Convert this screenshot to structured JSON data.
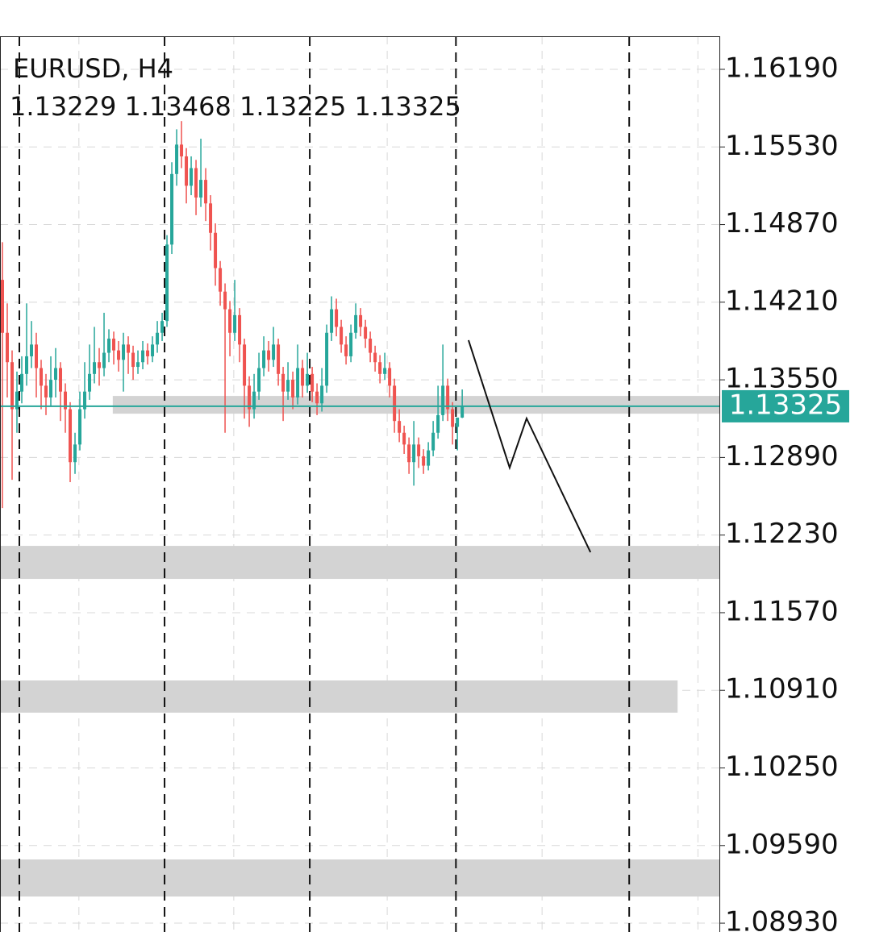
{
  "chart_data": {
    "type": "candlestick",
    "title": "EURUSD, H4",
    "up_color": "#26a69a",
    "down_color": "#ef5350",
    "ylim": [
      1.08855,
      1.16471
    ],
    "xlim": [
      -0.5,
      148.3
    ],
    "yticks": [
      {
        "value": 1.1619,
        "label": "1.16190"
      },
      {
        "value": 1.1553,
        "label": "1.15530"
      },
      {
        "value": 1.1487,
        "label": "1.14870"
      },
      {
        "value": 1.1421,
        "label": "1.14210"
      },
      {
        "value": 1.1355,
        "label": "1.13550"
      },
      {
        "value": 1.1289,
        "label": "1.12890"
      },
      {
        "value": 1.1223,
        "label": "1.12230"
      },
      {
        "value": 1.1157,
        "label": "1.11570"
      },
      {
        "value": 1.1091,
        "label": "1.10910"
      },
      {
        "value": 1.1025,
        "label": "1.10250"
      },
      {
        "value": 1.0959,
        "label": "1.09590"
      },
      {
        "value": 1.0893,
        "label": "1.08930"
      }
    ],
    "xgrid": [
      15.8,
      47.8,
      79.5,
      111.5,
      143.7
    ],
    "grid": true,
    "ohlc": [
      [
        1.144,
        1.1472,
        1.1246,
        1.1395
      ],
      [
        1.1395,
        1.142,
        1.134,
        1.137
      ],
      [
        1.137,
        1.138,
        1.127,
        1.133
      ],
      [
        1.133,
        1.1362,
        1.131,
        1.1345
      ],
      [
        1.1345,
        1.1375,
        1.1335,
        1.136
      ],
      [
        1.136,
        1.142,
        1.135,
        1.1375
      ],
      [
        1.1375,
        1.1405,
        1.1365,
        1.1385
      ],
      [
        1.1385,
        1.1395,
        1.134,
        1.1365
      ],
      [
        1.1365,
        1.1372,
        1.133,
        1.135
      ],
      [
        1.135,
        1.136,
        1.1325,
        1.134
      ],
      [
        1.134,
        1.1375,
        1.1332,
        1.1355
      ],
      [
        1.1355,
        1.1382,
        1.134,
        1.1365
      ],
      [
        1.1365,
        1.137,
        1.132,
        1.1345
      ],
      [
        1.1345,
        1.1352,
        1.131,
        1.133
      ],
      [
        1.133,
        1.1336,
        1.1268,
        1.1285
      ],
      [
        1.1285,
        1.131,
        1.1275,
        1.13
      ],
      [
        1.13,
        1.1345,
        1.1295,
        1.133
      ],
      [
        1.133,
        1.137,
        1.1322,
        1.1345
      ],
      [
        1.1345,
        1.1385,
        1.1338,
        1.136
      ],
      [
        1.136,
        1.14,
        1.1352,
        1.137
      ],
      [
        1.137,
        1.1382,
        1.135,
        1.1365
      ],
      [
        1.1365,
        1.1412,
        1.1358,
        1.1378
      ],
      [
        1.1378,
        1.1398,
        1.137,
        1.139
      ],
      [
        1.139,
        1.1396,
        1.1368,
        1.138
      ],
      [
        1.138,
        1.1388,
        1.1362,
        1.1372
      ],
      [
        1.1372,
        1.1395,
        1.1345,
        1.1385
      ],
      [
        1.1385,
        1.1392,
        1.136,
        1.1378
      ],
      [
        1.1378,
        1.1384,
        1.1355,
        1.1366
      ],
      [
        1.1366,
        1.138,
        1.136,
        1.137
      ],
      [
        1.137,
        1.1388,
        1.1364,
        1.138
      ],
      [
        1.138,
        1.1386,
        1.1368,
        1.1375
      ],
      [
        1.1375,
        1.1392,
        1.137,
        1.1385
      ],
      [
        1.1385,
        1.1405,
        1.1378,
        1.1395
      ],
      [
        1.1395,
        1.1412,
        1.1388,
        1.1405
      ],
      [
        1.1405,
        1.1478,
        1.14,
        1.147
      ],
      [
        1.147,
        1.154,
        1.1462,
        1.153
      ],
      [
        1.153,
        1.1568,
        1.152,
        1.1555
      ],
      [
        1.1555,
        1.1575,
        1.1535,
        1.1545
      ],
      [
        1.1545,
        1.1552,
        1.1505,
        1.152
      ],
      [
        1.152,
        1.1545,
        1.1512,
        1.1535
      ],
      [
        1.1535,
        1.1542,
        1.1495,
        1.151
      ],
      [
        1.151,
        1.156,
        1.1502,
        1.1525
      ],
      [
        1.1525,
        1.1535,
        1.149,
        1.1505
      ],
      [
        1.1505,
        1.1512,
        1.1465,
        1.148
      ],
      [
        1.148,
        1.1488,
        1.1435,
        1.145
      ],
      [
        1.145,
        1.1456,
        1.1418,
        1.143
      ],
      [
        1.143,
        1.1437,
        1.131,
        1.1415
      ],
      [
        1.1415,
        1.1422,
        1.1375,
        1.1395
      ],
      [
        1.1395,
        1.144,
        1.1388,
        1.141
      ],
      [
        1.141,
        1.1416,
        1.137,
        1.1385
      ],
      [
        1.1385,
        1.139,
        1.1322,
        1.135
      ],
      [
        1.135,
        1.1358,
        1.1315,
        1.133
      ],
      [
        1.133,
        1.136,
        1.1322,
        1.1345
      ],
      [
        1.1345,
        1.1378,
        1.1338,
        1.1365
      ],
      [
        1.1365,
        1.1392,
        1.1358,
        1.138
      ],
      [
        1.138,
        1.1388,
        1.1362,
        1.1372
      ],
      [
        1.1372,
        1.14,
        1.1366,
        1.1385
      ],
      [
        1.1385,
        1.139,
        1.135,
        1.136
      ],
      [
        1.136,
        1.1366,
        1.132,
        1.1345
      ],
      [
        1.1345,
        1.137,
        1.1338,
        1.1355
      ],
      [
        1.1355,
        1.1362,
        1.133,
        1.134
      ],
      [
        1.134,
        1.1385,
        1.1334,
        1.1365
      ],
      [
        1.1365,
        1.1372,
        1.134,
        1.135
      ],
      [
        1.135,
        1.1378,
        1.1344,
        1.136
      ],
      [
        1.136,
        1.1366,
        1.1336,
        1.1345
      ],
      [
        1.1345,
        1.1352,
        1.1325,
        1.1335
      ],
      [
        1.1335,
        1.1365,
        1.1328,
        1.135
      ],
      [
        1.135,
        1.1402,
        1.1344,
        1.1395
      ],
      [
        1.1395,
        1.1426,
        1.1388,
        1.1415
      ],
      [
        1.1415,
        1.1424,
        1.1392,
        1.14
      ],
      [
        1.14,
        1.1406,
        1.1378,
        1.1385
      ],
      [
        1.1385,
        1.1392,
        1.1368,
        1.1375
      ],
      [
        1.1375,
        1.1402,
        1.137,
        1.1395
      ],
      [
        1.1395,
        1.142,
        1.139,
        1.141
      ],
      [
        1.141,
        1.1416,
        1.1392,
        1.14
      ],
      [
        1.14,
        1.1406,
        1.1382,
        1.139
      ],
      [
        1.139,
        1.1396,
        1.137,
        1.1378
      ],
      [
        1.1378,
        1.1384,
        1.1362,
        1.137
      ],
      [
        1.137,
        1.1376,
        1.1352,
        1.136
      ],
      [
        1.136,
        1.1378,
        1.1355,
        1.1365
      ],
      [
        1.1365,
        1.137,
        1.134,
        1.135
      ],
      [
        1.135,
        1.1356,
        1.131,
        1.132
      ],
      [
        1.132,
        1.133,
        1.1302,
        1.131
      ],
      [
        1.131,
        1.1316,
        1.1292,
        1.13
      ],
      [
        1.13,
        1.1306,
        1.1275,
        1.1285
      ],
      [
        1.1285,
        1.132,
        1.1265,
        1.13
      ],
      [
        1.13,
        1.1306,
        1.128,
        1.129
      ],
      [
        1.129,
        1.1296,
        1.1275,
        1.1282
      ],
      [
        1.1282,
        1.1302,
        1.1278,
        1.1295
      ],
      [
        1.1295,
        1.132,
        1.129,
        1.131
      ],
      [
        1.131,
        1.135,
        1.1305,
        1.1325
      ],
      [
        1.1325,
        1.1385,
        1.132,
        1.135
      ],
      [
        1.135,
        1.1356,
        1.132,
        1.133
      ],
      [
        1.133,
        1.1336,
        1.13,
        1.1315
      ],
      [
        1.1315,
        1.1322,
        1.1295,
        1.13229
      ],
      [
        1.13229,
        1.13468,
        1.13225,
        1.13325
      ]
    ],
    "zones": [
      {
        "top": 1.13413,
        "bottom": 1.13262,
        "start": 22.8,
        "end": 148.3
      },
      {
        "top": 1.12138,
        "bottom": 1.11857,
        "start": -0.5,
        "end": 148.3
      },
      {
        "top": 1.10994,
        "bottom": 1.1072,
        "start": -0.5,
        "end": 139.5
      },
      {
        "top": 1.09472,
        "bottom": 1.09157,
        "start": -0.5,
        "end": 148.3
      }
    ],
    "vlines": [
      3.5,
      33.5,
      63.5,
      93.7,
      129.5
    ],
    "zigzag": {
      "x": [
        96.3,
        104.8,
        108.3,
        121.5
      ],
      "y": [
        1.13887,
        1.12803,
        1.13222,
        1.12084
      ]
    }
  }
}
